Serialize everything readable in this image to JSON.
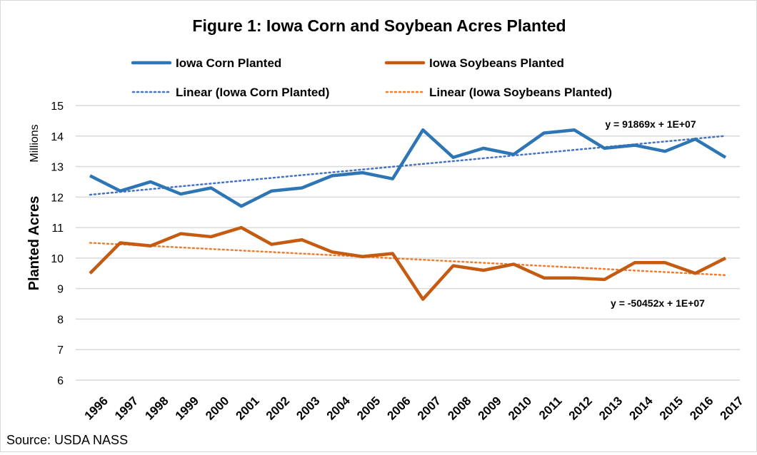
{
  "chart_data": {
    "type": "line",
    "title": "Figure 1: Iowa Corn and Soybean Acres Planted",
    "ylabel": "Planted Acres",
    "yunit": "Millions",
    "xlabel": "",
    "ylim": [
      6,
      15
    ],
    "yticks": [
      6,
      7,
      8,
      9,
      10,
      11,
      12,
      13,
      14,
      15
    ],
    "grid": true,
    "legend_position": "top",
    "categories": [
      "1996",
      "1997",
      "1998",
      "1999",
      "2000",
      "2001",
      "2002",
      "2003",
      "2004",
      "2005",
      "2006",
      "2007",
      "2008",
      "2009",
      "2010",
      "2011",
      "2012",
      "2013",
      "2014",
      "2015",
      "2016",
      "2017"
    ],
    "series": [
      {
        "name": "Iowa Corn Planted",
        "color": "#2E75B6",
        "values": [
          12.7,
          12.2,
          12.5,
          12.1,
          12.3,
          11.7,
          12.2,
          12.3,
          12.7,
          12.8,
          12.6,
          14.2,
          13.3,
          13.6,
          13.4,
          14.1,
          14.2,
          13.6,
          13.7,
          13.5,
          13.9,
          13.3
        ]
      },
      {
        "name": "Iowa Soybeans Planted",
        "color": "#C55A11",
        "values": [
          9.5,
          10.5,
          10.4,
          10.8,
          10.7,
          11.0,
          10.45,
          10.6,
          10.2,
          10.05,
          10.15,
          8.65,
          9.75,
          9.6,
          9.8,
          9.35,
          9.35,
          9.3,
          9.85,
          9.85,
          9.5,
          10.0
        ]
      }
    ],
    "trendlines": [
      {
        "name": "Linear (Iowa Corn Planted)",
        "of": 0,
        "color": "#4472C4",
        "equation": "y = 91869x + 1E+07"
      },
      {
        "name": "Linear (Iowa Soybeans Planted)",
        "of": 1,
        "color": "#ED7D31",
        "equation": "y = -50452x + 1E+07"
      }
    ],
    "source": "Source: USDA NASS"
  }
}
